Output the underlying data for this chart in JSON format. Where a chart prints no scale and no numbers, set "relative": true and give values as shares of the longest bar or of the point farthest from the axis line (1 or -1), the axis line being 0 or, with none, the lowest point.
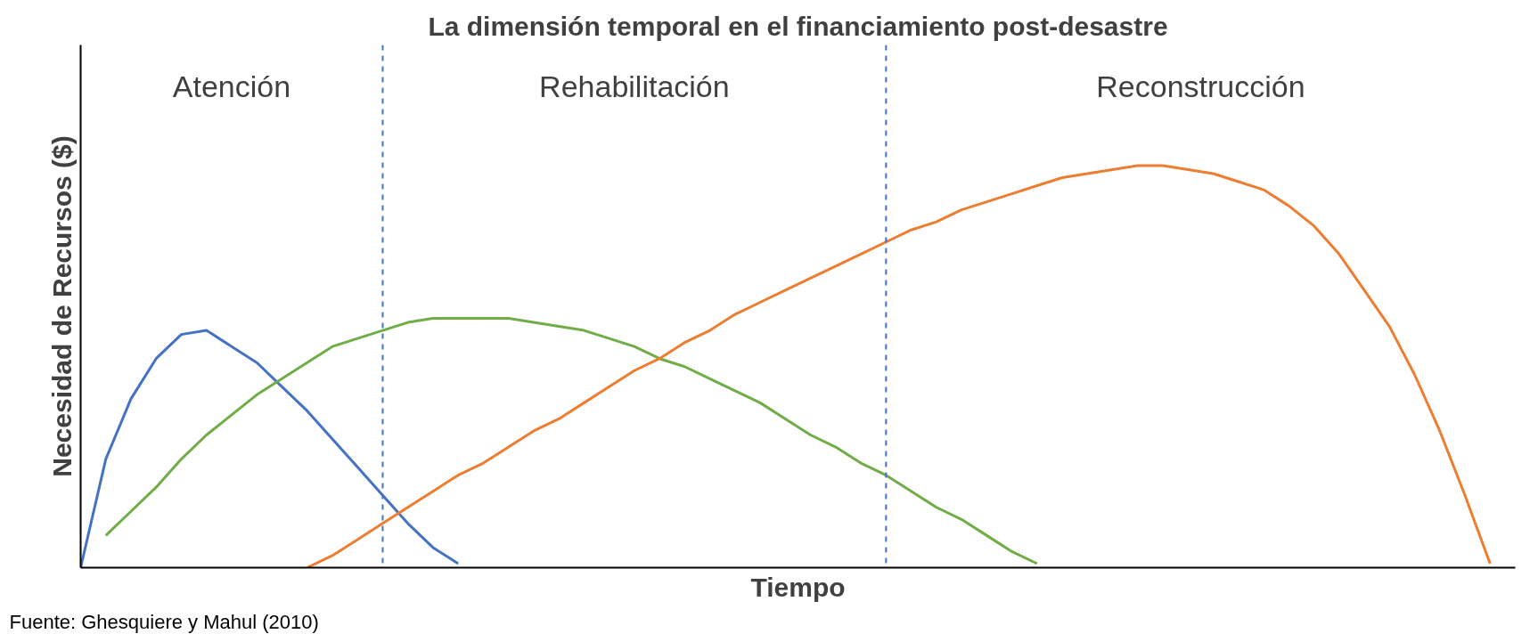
{
  "chart_data": {
    "type": "line",
    "relative": true,
    "title": "La dimensión temporal en el financiamiento post-desastre",
    "xlabel": "Tiempo",
    "ylabel": "Necesidad de Recursos ($)",
    "categories": [
      null,
      null,
      null,
      null,
      null,
      null,
      null,
      null,
      null,
      null,
      null,
      null,
      null,
      null,
      null,
      null,
      null,
      null,
      null,
      null,
      null,
      null,
      null,
      null,
      null,
      null,
      null,
      null,
      null,
      null,
      null,
      null,
      null,
      null,
      null,
      null,
      null,
      null,
      null,
      null,
      null,
      null,
      null,
      null,
      null,
      null,
      null,
      null,
      null,
      null,
      null,
      null,
      null,
      null,
      null,
      null,
      null,
      null
    ],
    "series": [
      {
        "color": "#4472c4",
        "values": [
          0,
          0.27,
          0.42,
          0.52,
          0.58,
          0.59,
          0.55,
          0.51,
          0.45,
          0.39,
          0.32,
          0.25,
          0.18,
          0.11,
          0.05,
          0.01,
          null,
          null,
          null,
          null,
          null,
          null,
          null,
          null,
          null,
          null,
          null,
          null,
          null,
          null,
          null,
          null,
          null,
          null,
          null,
          null,
          null,
          null,
          null,
          null,
          null,
          null,
          null,
          null,
          null,
          null,
          null,
          null,
          null,
          null,
          null,
          null,
          null,
          null,
          null,
          null,
          null,
          null
        ]
      },
      {
        "color": "#70ad47",
        "values": [
          null,
          0.08,
          0.14,
          0.2,
          0.27,
          0.33,
          0.38,
          0.43,
          0.47,
          0.51,
          0.55,
          0.57,
          0.59,
          0.61,
          0.62,
          0.62,
          0.62,
          0.62,
          0.61,
          0.6,
          0.59,
          0.57,
          0.55,
          0.52,
          0.5,
          0.47,
          0.44,
          0.41,
          0.37,
          0.33,
          0.3,
          0.26,
          0.23,
          0.19,
          0.15,
          0.12,
          0.08,
          0.04,
          0.01,
          null,
          null,
          null,
          null,
          null,
          null,
          null,
          null,
          null,
          null,
          null,
          null,
          null,
          null,
          null,
          null,
          null,
          null,
          null
        ]
      },
      {
        "color": "#ed7d31",
        "values": [
          null,
          null,
          null,
          null,
          null,
          null,
          null,
          null,
          null,
          0,
          0.03,
          0.07,
          0.11,
          0.15,
          0.19,
          0.23,
          0.26,
          0.3,
          0.34,
          0.37,
          0.41,
          0.45,
          0.49,
          0.52,
          0.56,
          0.59,
          0.63,
          0.66,
          0.69,
          0.72,
          0.75,
          0.78,
          0.81,
          0.84,
          0.86,
          0.89,
          0.91,
          0.93,
          0.95,
          0.97,
          0.98,
          0.99,
          1,
          1,
          0.99,
          0.98,
          0.96,
          0.94,
          0.9,
          0.85,
          0.78,
          0.69,
          0.6,
          0.48,
          0.34,
          0.18,
          0.01,
          null
        ]
      }
    ],
    "annotations": [
      "Atención",
      "Rehabilitación",
      "Reconstrucción",
      "Fuente: Ghesquiere y Mahul (2010)"
    ],
    "line_style": "solid"
  }
}
